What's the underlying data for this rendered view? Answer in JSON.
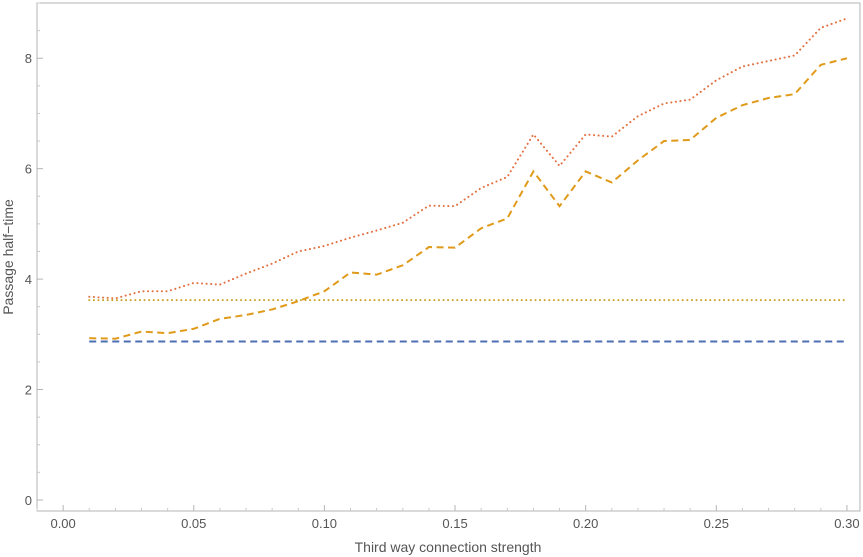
{
  "chart_data": {
    "type": "line",
    "title": "",
    "xlabel": "Third way connection strength",
    "ylabel": "Passage half−time",
    "xlim": [
      -0.01,
      0.305
    ],
    "ylim": [
      -0.2,
      9.0
    ],
    "xticks": [
      "0.00",
      "0.05",
      "0.10",
      "0.15",
      "0.20",
      "0.25",
      "0.30"
    ],
    "xtick_values": [
      0.0,
      0.05,
      0.1,
      0.15,
      0.2,
      0.25,
      0.3
    ],
    "yticks": [
      "0",
      "2",
      "4",
      "6",
      "8"
    ],
    "ytick_values": [
      0,
      2,
      4,
      6,
      8
    ],
    "grid": false,
    "legend": "none",
    "series": [
      {
        "color": "#e3703f",
        "style": "dotted",
        "x": [
          0.01,
          0.02,
          0.03,
          0.04,
          0.05,
          0.06,
          0.07,
          0.08,
          0.09,
          0.1,
          0.11,
          0.12,
          0.13,
          0.14,
          0.15,
          0.16,
          0.17,
          0.18,
          0.19,
          0.2,
          0.21,
          0.22,
          0.23,
          0.24,
          0.25,
          0.26,
          0.27,
          0.28,
          0.29,
          0.3
        ],
        "y": [
          3.68,
          3.65,
          3.78,
          3.78,
          3.93,
          3.9,
          4.1,
          4.28,
          4.5,
          4.6,
          4.75,
          4.88,
          5.02,
          5.33,
          5.32,
          5.65,
          5.85,
          6.62,
          6.05,
          6.62,
          6.58,
          6.95,
          7.18,
          7.25,
          7.6,
          7.85,
          7.95,
          8.05,
          8.55,
          8.72
        ]
      },
      {
        "color": "#e09a1a",
        "style": "dashed",
        "x": [
          0.01,
          0.02,
          0.03,
          0.04,
          0.05,
          0.06,
          0.07,
          0.08,
          0.09,
          0.1,
          0.11,
          0.12,
          0.13,
          0.14,
          0.15,
          0.16,
          0.17,
          0.18,
          0.19,
          0.2,
          0.21,
          0.22,
          0.23,
          0.24,
          0.25,
          0.26,
          0.27,
          0.28,
          0.29,
          0.3
        ],
        "y": [
          2.93,
          2.92,
          3.05,
          3.02,
          3.1,
          3.28,
          3.35,
          3.45,
          3.6,
          3.78,
          4.12,
          4.08,
          4.25,
          4.58,
          4.57,
          4.92,
          5.1,
          5.95,
          5.32,
          5.95,
          5.75,
          6.15,
          6.5,
          6.52,
          6.92,
          7.15,
          7.28,
          7.35,
          7.88,
          8.0
        ]
      },
      {
        "color": "#c9a227",
        "style": "dotted",
        "x": [
          0.01,
          0.3
        ],
        "y": [
          3.62,
          3.62
        ]
      },
      {
        "color": "#4c6fb3",
        "style": "dashed",
        "x": [
          0.01,
          0.3
        ],
        "y": [
          2.87,
          2.87
        ]
      }
    ]
  }
}
